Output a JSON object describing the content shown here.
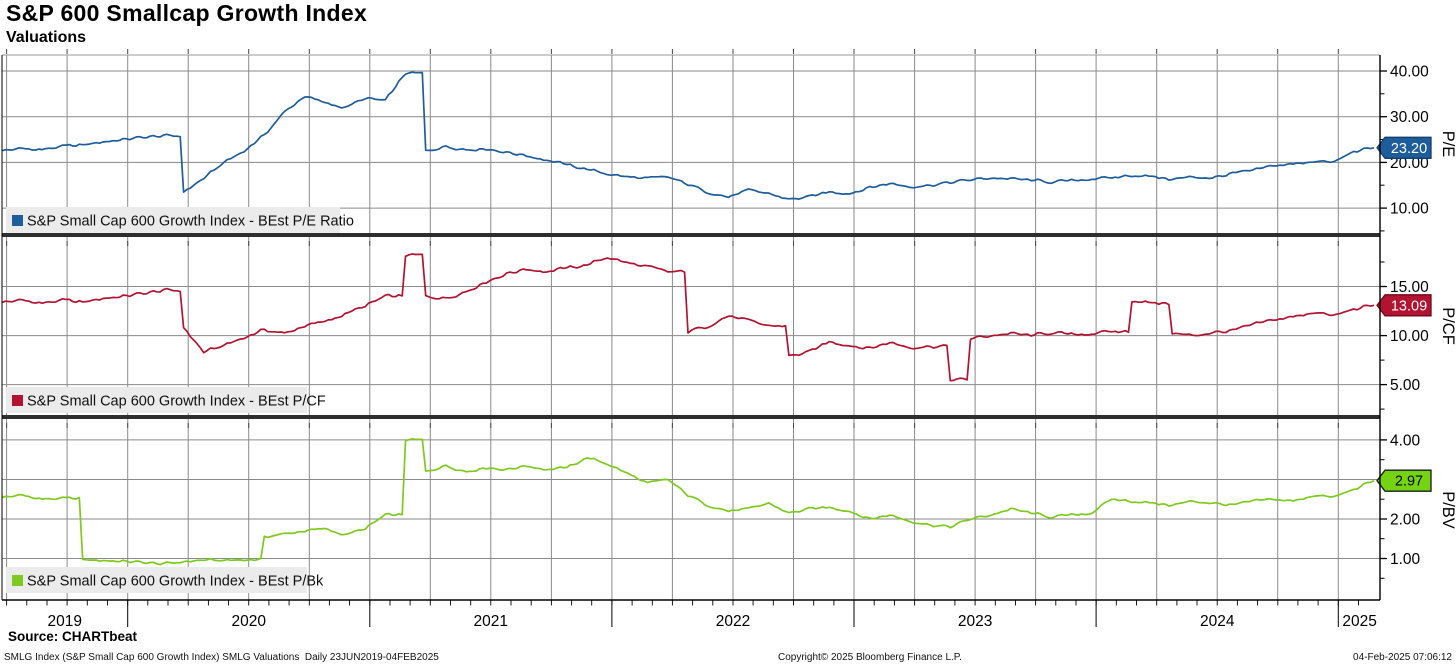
{
  "header": {
    "title": "S&P 600 Smallcap Growth Index",
    "subtitle": "Valuations"
  },
  "source_line": "Source: CHARTbeat",
  "footer": {
    "left": "SMLG Index (S&P Small Cap 600 Growth Index) SMLG Valuations  Daily 23JUN2019-04FEB2025",
    "center": "Copyright© 2025 Bloomberg Finance L.P.",
    "right": "04-Feb-2025 07:06:12"
  },
  "chart_data": {
    "type": "line",
    "title": "S&P 600 Smallcap Growth Index Valuations",
    "x_axis": {
      "start": "23JUN2019",
      "end": "04FEB2025",
      "frequency": "Daily",
      "year_labels": [
        "2019",
        "2020",
        "2021",
        "2022",
        "2023",
        "2024",
        "2025"
      ]
    },
    "months_start": "2019-06",
    "months_end": "2025-02",
    "grid": true,
    "legend_position": "bottom-left-inside-each-panel",
    "panels": [
      {
        "id": "pe",
        "axis_label": "P/E",
        "legend": "S&P Small Cap 600 Growth Index - BEst P/E Ratio",
        "color": "#1e5d9c",
        "badge_color": "#1e5d9c",
        "badge_border": "#123f6b",
        "badge_text_color": "#ffffff",
        "last_value": "23.20",
        "last_value_num": 23.2,
        "ylim": [
          4.55,
          43.5
        ],
        "ticks": [
          {
            "value": 10,
            "label": "10.00"
          },
          {
            "value": 20,
            "label": "20.00"
          },
          {
            "value": 30,
            "label": "30.00"
          },
          {
            "value": 40,
            "label": "40.00"
          }
        ],
        "minor_ticks": [
          5,
          15,
          25,
          35
        ],
        "values": [
          22.6,
          23.0,
          22.8,
          23.5,
          23.8,
          24.5,
          25.0,
          25.5,
          25.8,
          13.5,
          16.5,
          20.0,
          22.5,
          26.0,
          31.0,
          34.5,
          33.0,
          32.0,
          34.0,
          33.5,
          39.5,
          22.5,
          23.5,
          22.8,
          23.0,
          22.2,
          21.5,
          20.5,
          19.5,
          18.5,
          17.5,
          16.8,
          16.5,
          16.8,
          15.2,
          13.5,
          12.4,
          13.9,
          13.2,
          11.9,
          12.4,
          13.6,
          13.2,
          14.5,
          15.4,
          14.7,
          15.0,
          15.6,
          16.2,
          16.6,
          16.4,
          16.1,
          15.7,
          16.0,
          16.4,
          16.6,
          17.2,
          16.9,
          16.3,
          16.8,
          16.6,
          17.6,
          18.2,
          19.3,
          19.6,
          20.3,
          20.0,
          22.4,
          23.2
        ]
      },
      {
        "id": "pcf",
        "axis_label": "P/CF",
        "legend": "S&P Small Cap 600 Growth Index - BEst P/CF",
        "color": "#b11330",
        "badge_color": "#b11330",
        "badge_border": "#72091c",
        "badge_text_color": "#ffffff",
        "last_value": "13.09",
        "last_value_num": 13.09,
        "ylim": [
          1.9,
          20.05
        ],
        "ticks": [
          {
            "value": 5,
            "label": "5.00"
          },
          {
            "value": 10,
            "label": "10.00"
          },
          {
            "value": 15,
            "label": "15.00"
          }
        ],
        "minor_ticks": [
          2.5,
          7.5,
          12.5,
          17.5
        ],
        "values": [
          13.4,
          13.6,
          13.3,
          13.6,
          13.4,
          13.8,
          14.0,
          14.3,
          14.6,
          10.8,
          8.3,
          9.0,
          9.8,
          10.6,
          10.2,
          11.0,
          11.4,
          12.2,
          13.0,
          14.0,
          18.2,
          14.0,
          13.8,
          14.5,
          15.5,
          16.3,
          16.8,
          16.5,
          16.9,
          17.2,
          18.0,
          17.4,
          17.0,
          16.5,
          10.4,
          11.0,
          12.0,
          11.5,
          11.0,
          7.9,
          8.3,
          9.4,
          9.0,
          8.7,
          9.3,
          8.8,
          8.9,
          5.5,
          9.7,
          10.0,
          10.2,
          10.0,
          10.3,
          10.1,
          10.2,
          10.4,
          13.6,
          13.3,
          10.2,
          10.0,
          10.3,
          10.5,
          11.1,
          11.6,
          11.9,
          12.4,
          12.0,
          12.7,
          13.09
        ]
      },
      {
        "id": "pbv",
        "axis_label": "P/BV",
        "legend": "S&P Small Cap 600 Growth Index - BEst P/Bk",
        "color": "#7ec91d",
        "badge_color": "#74d411",
        "badge_border": "#1a1a1a",
        "badge_text_color": "#000000",
        "last_value": "2.97",
        "last_value_num": 2.97,
        "ylim": [
          -0.05,
          4.53
        ],
        "ticks": [
          {
            "value": 1,
            "label": "1.00"
          },
          {
            "value": 2,
            "label": "2.00"
          },
          {
            "value": 3,
            "label": "3.00"
          },
          {
            "value": 4,
            "label": "4.00"
          }
        ],
        "minor_ticks": [
          0.5,
          1.5,
          2.5,
          3.5,
          4.5
        ],
        "values": [
          2.55,
          2.6,
          2.5,
          2.52,
          0.97,
          0.95,
          0.93,
          0.9,
          0.86,
          0.92,
          0.96,
          0.95,
          0.97,
          1.55,
          1.62,
          1.7,
          1.75,
          1.6,
          1.75,
          2.1,
          4.0,
          3.2,
          3.35,
          3.2,
          3.3,
          3.25,
          3.35,
          3.25,
          3.3,
          3.55,
          3.4,
          3.15,
          2.9,
          3.0,
          2.6,
          2.35,
          2.2,
          2.25,
          2.4,
          2.15,
          2.25,
          2.3,
          2.2,
          2.0,
          2.1,
          1.95,
          1.85,
          1.8,
          2.0,
          2.1,
          2.25,
          2.15,
          2.05,
          2.1,
          2.15,
          2.5,
          2.45,
          2.4,
          2.35,
          2.45,
          2.4,
          2.35,
          2.45,
          2.5,
          2.45,
          2.6,
          2.55,
          2.75,
          2.97
        ]
      }
    ],
    "style_colors": {
      "grid": "#8a8a8a",
      "panel_divider": "#2e2e2e",
      "axis": "#000000",
      "legend_bg": "#ebebeb",
      "background": "#ffffff"
    }
  }
}
